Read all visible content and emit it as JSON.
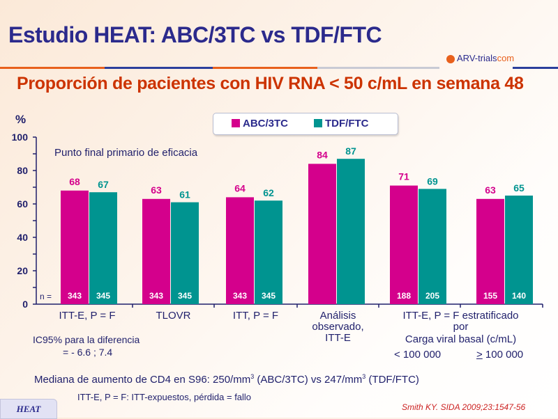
{
  "header": {
    "title": "Estudio HEAT: ABC/3TC vs TDF/FTC",
    "logo_text_a": "ARV-trials",
    "logo_text_b": "com"
  },
  "chart_data": {
    "type": "bar",
    "title": "Proporción de pacientes con HIV RNA < 50 c/mL en semana 48",
    "ylabel": "%",
    "ylim": [
      0,
      100
    ],
    "yticks": [
      0,
      20,
      40,
      60,
      80,
      100
    ],
    "ytick_labels": [
      "0",
      "20",
      "40",
      "60",
      "80",
      "100"
    ],
    "legend_position": "top-center",
    "categories": [
      "ITT-E, P = F",
      "TLOVR",
      "ITT, P = F",
      "Análisis observado, ITT-E",
      "< 100 000",
      "≥ 100 000"
    ],
    "series": [
      {
        "name": "ABC/3TC",
        "color": "#d4008c",
        "values": [
          68,
          63,
          64,
          84,
          71,
          63
        ],
        "n": [
          "343",
          "343",
          "343",
          "",
          "188",
          "155"
        ]
      },
      {
        "name": "TDF/FTC",
        "color": "#009490",
        "values": [
          67,
          61,
          62,
          87,
          69,
          65
        ],
        "n": [
          "345",
          "345",
          "345",
          "",
          "205",
          "140"
        ]
      }
    ],
    "n_label": "n =",
    "annotation": "Punto final primario de eficacia"
  },
  "categories_text": {
    "c1": "ITT-E, P = F",
    "c2": "TLOVR",
    "c3": "ITT, P = F",
    "c4_l1": "Análisis",
    "c4_l2": "observado,",
    "c4_l3": "ITT-E",
    "c5_l1": "ITT-E, P = F estratificado",
    "c5_l2": "por",
    "c5_l3": "Carga viral basal (c/mL)",
    "c5_low": "< 100 000",
    "c5_high_sym": ">",
    "c5_high": " 100 000"
  },
  "notes": {
    "ci_l1": "IC95% para la diferencia",
    "ci_l2": "= - 6.6 ; 7.4",
    "cd4_a": "Mediana de aumento de CD4 en S96: 250/mm",
    "cd4_sup": "3",
    "cd4_b": " (ABC/3TC) vs 247/mm",
    "cd4_c": " (TDF/FTC)",
    "def": "ITT-E, P = F: ITT-expuestos, pérdida = fallo"
  },
  "footer": {
    "badge": "HEAT",
    "citation": "Smith KY. SIDA 2009;23:1547-56"
  }
}
